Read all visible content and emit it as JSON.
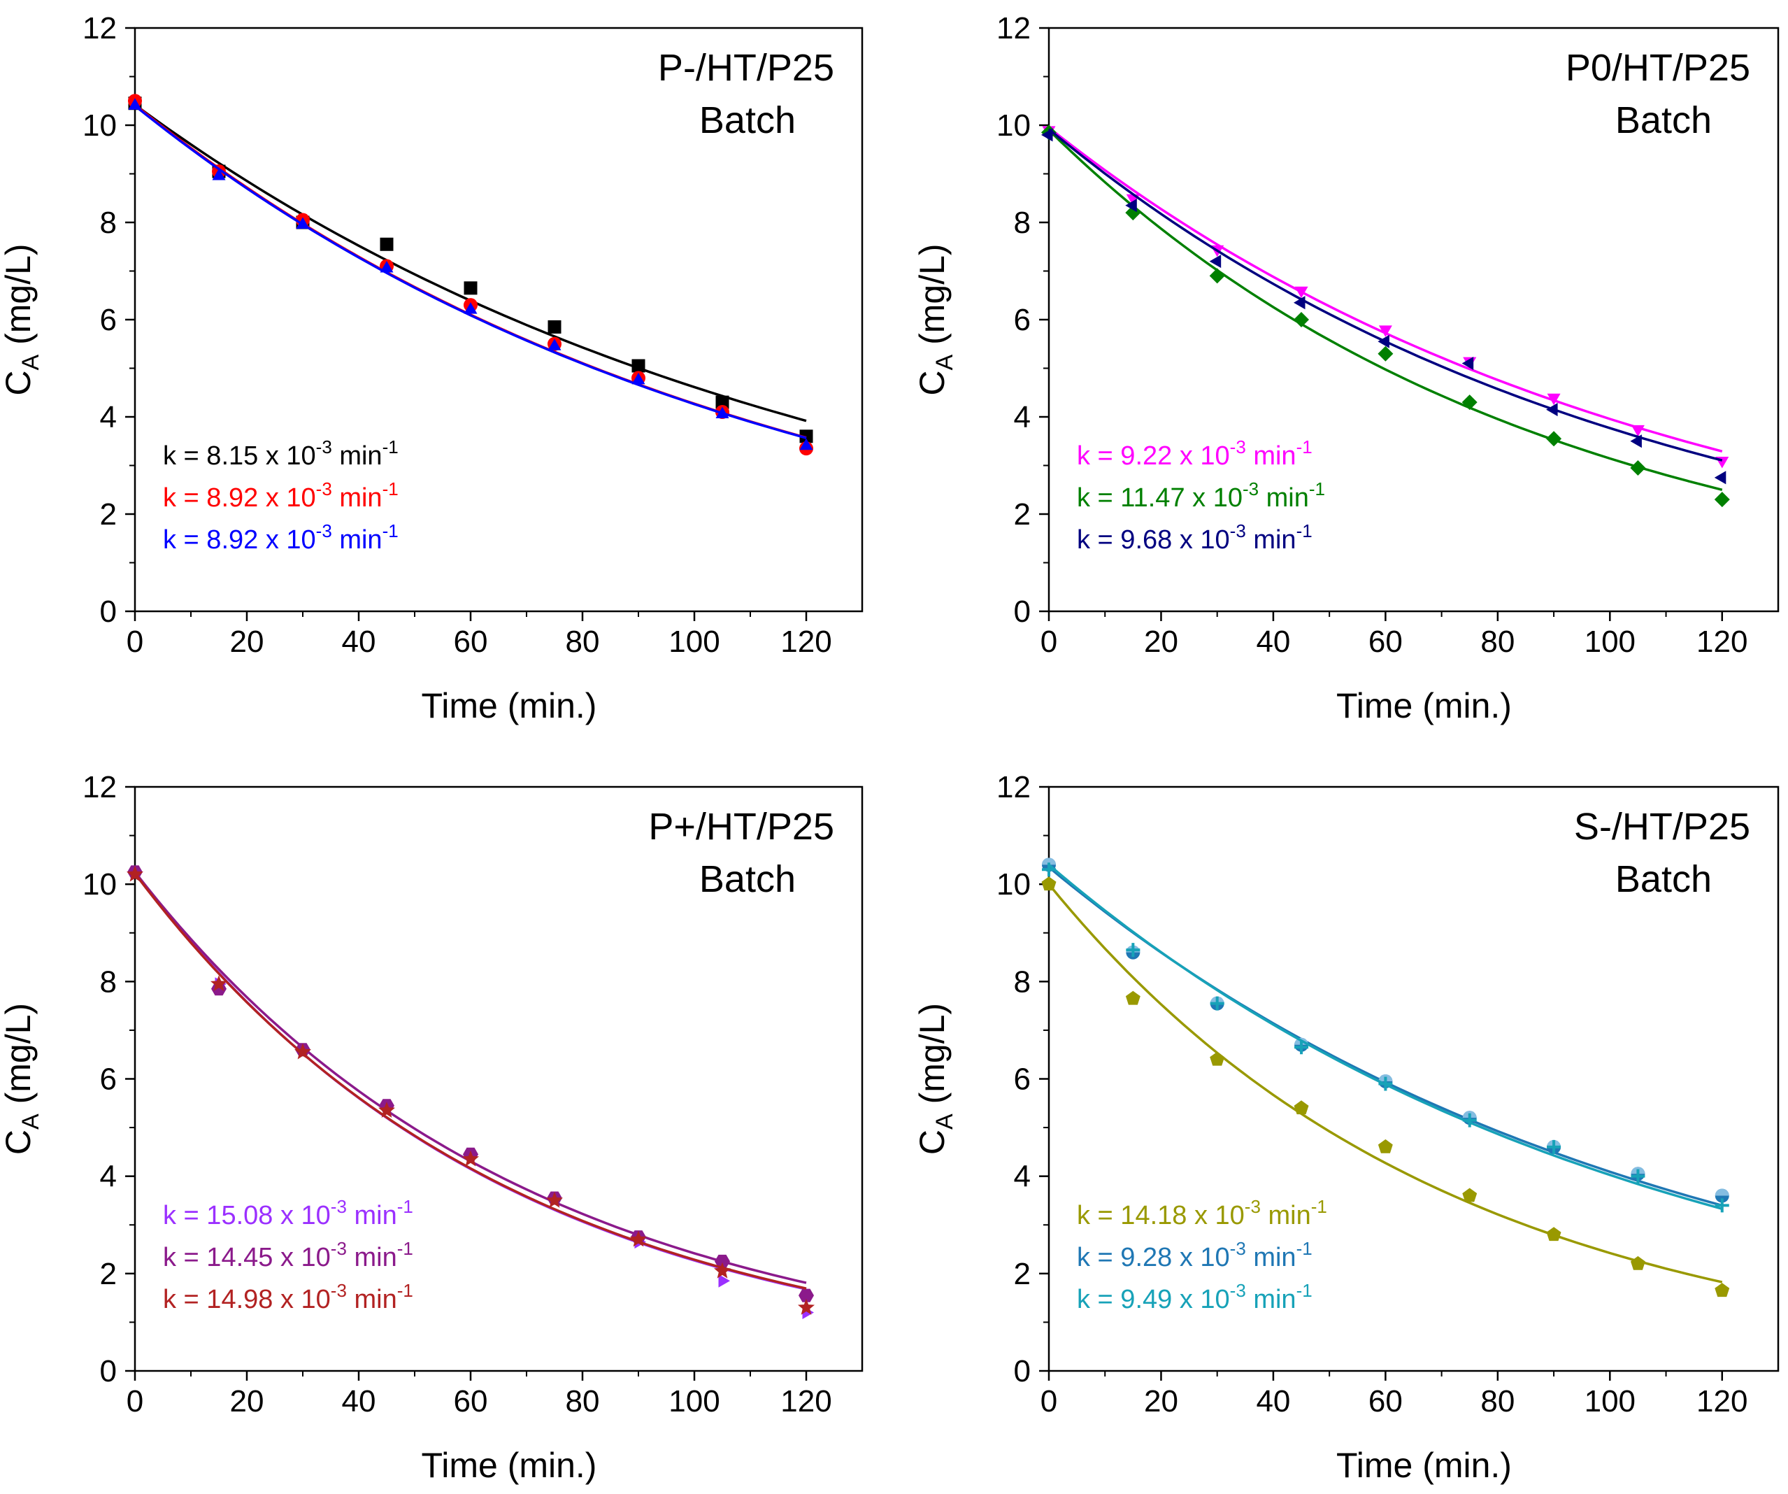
{
  "chart_data": [
    {
      "type": "scatter",
      "panel": "P-/HT/P25",
      "title_line1": "P-/HT/P25",
      "title_line2": "Batch",
      "xlabel": "Time (min.)",
      "ylabel_main": "C",
      "ylabel_sub": "A",
      "ylabel_rest": " (mg/L)",
      "xlim": [
        0,
        130
      ],
      "ylim": [
        0,
        12
      ],
      "xticks": [
        "0",
        "20",
        "40",
        "60",
        "80",
        "100",
        "120"
      ],
      "yticks": [
        "0",
        "2",
        "4",
        "6",
        "8",
        "10",
        "12"
      ],
      "legend_position": "bottom-left",
      "series": [
        {
          "color": "#000000",
          "marker": "square",
          "k_value": "8.15",
          "k_label": "k = 8.15 x 10",
          "k_exp": "-3",
          "k_unit": " min",
          "k_unit_exp": "-1",
          "fit": {
            "c0": 10.42,
            "k": 0.00815
          },
          "x": [
            0,
            15,
            30,
            45,
            60,
            75,
            90,
            105,
            120
          ],
          "y": [
            10.45,
            9.05,
            8.0,
            7.55,
            6.65,
            5.85,
            5.05,
            4.3,
            3.6
          ]
        },
        {
          "color": "#ff0000",
          "marker": "circle",
          "k_value": "8.92",
          "k_label": "k = 8.92 x 10",
          "k_exp": "-3",
          "k_unit": " min",
          "k_unit_exp": "-1",
          "fit": {
            "c0": 10.42,
            "k": 0.00892
          },
          "x": [
            0,
            15,
            30,
            45,
            60,
            75,
            90,
            105,
            120
          ],
          "y": [
            10.5,
            9.05,
            8.05,
            7.1,
            6.3,
            5.5,
            4.8,
            4.1,
            3.35
          ]
        },
        {
          "color": "#0000ff",
          "marker": "triangle-up",
          "k_value": "8.92",
          "k_label": "k = 8.92 x 10",
          "k_exp": "-3",
          "k_unit": " min",
          "k_unit_exp": "-1",
          "fit": {
            "c0": 10.4,
            "k": 0.00892
          },
          "x": [
            0,
            15,
            30,
            45,
            60,
            75,
            90,
            105,
            120
          ],
          "y": [
            10.4,
            8.95,
            7.95,
            7.05,
            6.2,
            5.45,
            4.75,
            4.05,
            3.4
          ]
        }
      ]
    },
    {
      "type": "scatter",
      "panel": "P0/HT/P25",
      "title_line1": "P0/HT/P25",
      "title_line2": "Batch",
      "xlabel": "Time (min.)",
      "ylabel_main": "C",
      "ylabel_sub": "A",
      "ylabel_rest": " (mg/L)",
      "xlim": [
        0,
        130
      ],
      "ylim": [
        0,
        12
      ],
      "xticks": [
        "0",
        "20",
        "40",
        "60",
        "80",
        "100",
        "120"
      ],
      "yticks": [
        "0",
        "2",
        "4",
        "6",
        "8",
        "10",
        "12"
      ],
      "legend_position": "bottom-left",
      "series": [
        {
          "color": "#ff00ff",
          "marker": "triangle-down",
          "k_value": "9.22",
          "k_label": "k = 9.22 x 10",
          "k_exp": "-3",
          "k_unit": " min",
          "k_unit_exp": "-1",
          "fit": {
            "c0": 9.95,
            "k": 0.00922
          },
          "x": [
            0,
            15,
            30,
            45,
            60,
            75,
            90,
            105,
            120
          ],
          "y": [
            9.9,
            8.5,
            7.45,
            6.6,
            5.8,
            5.15,
            4.4,
            3.75,
            3.1
          ]
        },
        {
          "color": "#008000",
          "marker": "diamond",
          "k_value": "11.47",
          "k_label": "k = 11.47 x 10",
          "k_exp": "-3",
          "k_unit": " min",
          "k_unit_exp": "-1",
          "fit": {
            "c0": 9.9,
            "k": 0.01147
          },
          "x": [
            0,
            15,
            30,
            45,
            60,
            75,
            90,
            105,
            120
          ],
          "y": [
            9.85,
            8.2,
            6.9,
            6.0,
            5.3,
            4.3,
            3.55,
            2.95,
            2.3
          ]
        },
        {
          "color": "#000080",
          "marker": "triangle-left",
          "k_value": "9.68",
          "k_label": "k = 9.68 x 10",
          "k_exp": "-3",
          "k_unit": " min",
          "k_unit_exp": "-1",
          "fit": {
            "c0": 9.92,
            "k": 0.00968
          },
          "x": [
            0,
            15,
            30,
            45,
            60,
            75,
            90,
            105,
            120
          ],
          "y": [
            9.8,
            8.35,
            7.2,
            6.35,
            5.55,
            5.1,
            4.15,
            3.5,
            2.75
          ]
        }
      ]
    },
    {
      "type": "scatter",
      "panel": "P+/HT/P25",
      "title_line1": "P+/HT/P25",
      "title_line2": "Batch",
      "xlabel": "Time (min.)",
      "ylabel_main": "C",
      "ylabel_sub": "A",
      "ylabel_rest": " (mg/L)",
      "xlim": [
        0,
        130
      ],
      "ylim": [
        0,
        12
      ],
      "xticks": [
        "0",
        "20",
        "40",
        "60",
        "80",
        "100",
        "120"
      ],
      "yticks": [
        "0",
        "2",
        "4",
        "6",
        "8",
        "10",
        "12"
      ],
      "legend_position": "bottom-left",
      "series": [
        {
          "color": "#9b30ff",
          "marker": "triangle-right",
          "k_value": "15.08",
          "k_label": "k = 15.08 x 10",
          "k_exp": "-3",
          "k_unit": " min",
          "k_unit_exp": "-1",
          "fit": {
            "c0": 10.25,
            "k": 0.01508
          },
          "x": [
            0,
            15,
            30,
            45,
            60,
            75,
            90,
            105,
            120
          ],
          "y": [
            10.25,
            7.95,
            6.6,
            5.4,
            4.45,
            3.55,
            2.65,
            1.85,
            1.2
          ]
        },
        {
          "color": "#8b1a8b",
          "marker": "hexagon",
          "k_value": "14.45",
          "k_label": "k = 14.45 x 10",
          "k_exp": "-3",
          "k_unit": " min",
          "k_unit_exp": "-1",
          "fit": {
            "c0": 10.25,
            "k": 0.01445
          },
          "x": [
            0,
            15,
            30,
            45,
            60,
            75,
            90,
            105,
            120
          ],
          "y": [
            10.25,
            7.85,
            6.6,
            5.45,
            4.45,
            3.55,
            2.75,
            2.25,
            1.55
          ]
        },
        {
          "color": "#b22222",
          "marker": "star",
          "k_value": "14.98",
          "k_label": "k = 14.98 x 10",
          "k_exp": "-3",
          "k_unit": " min",
          "k_unit_exp": "-1",
          "fit": {
            "c0": 10.22,
            "k": 0.01498
          },
          "x": [
            0,
            15,
            30,
            45,
            60,
            75,
            90,
            105,
            120
          ],
          "y": [
            10.2,
            7.95,
            6.55,
            5.35,
            4.35,
            3.5,
            2.7,
            2.05,
            1.3
          ]
        }
      ]
    },
    {
      "type": "scatter",
      "panel": "S-/HT/P25",
      "title_line1": "S-/HT/P25",
      "title_line2": "Batch",
      "xlabel": "Time (min.)",
      "ylabel_main": "C",
      "ylabel_sub": "A",
      "ylabel_rest": " (mg/L)",
      "xlim": [
        0,
        130
      ],
      "ylim": [
        0,
        12
      ],
      "xticks": [
        "0",
        "20",
        "40",
        "60",
        "80",
        "100",
        "120"
      ],
      "yticks": [
        "0",
        "2",
        "4",
        "6",
        "8",
        "10",
        "12"
      ],
      "legend_position": "bottom-left",
      "series": [
        {
          "color": "#999900",
          "marker": "pentagon",
          "k_value": "14.18",
          "k_label": "k = 14.18 x 10",
          "k_exp": "-3",
          "k_unit": " min",
          "k_unit_exp": "-1",
          "fit": {
            "c0": 10.0,
            "k": 0.01418
          },
          "x": [
            0,
            15,
            30,
            45,
            60,
            75,
            90,
            105,
            120
          ],
          "y": [
            10.0,
            7.65,
            6.4,
            5.4,
            4.6,
            3.6,
            2.8,
            2.2,
            1.65
          ]
        },
        {
          "color": "#1f77b4",
          "marker": "circle-half",
          "k_value": "9.28",
          "k_label": "k = 9.28 x 10",
          "k_exp": "-3",
          "k_unit": " min",
          "k_unit_exp": "-1",
          "fit": {
            "c0": 10.35,
            "k": 0.00928
          },
          "x": [
            0,
            15,
            30,
            45,
            60,
            75,
            90,
            105,
            120
          ],
          "y": [
            10.4,
            8.6,
            7.55,
            6.7,
            5.95,
            5.2,
            4.6,
            4.05,
            3.6
          ]
        },
        {
          "color": "#17a2b8",
          "marker": "plus",
          "k_value": "9.49",
          "k_label": "k = 9.49 x 10",
          "k_exp": "-3",
          "k_unit": " min",
          "k_unit_exp": "-1",
          "fit": {
            "c0": 10.4,
            "k": 0.00949
          },
          "x": [
            0,
            15,
            30,
            45,
            60,
            75,
            90,
            105,
            120
          ],
          "y": [
            10.3,
            8.65,
            7.55,
            6.65,
            5.9,
            5.15,
            4.6,
            4.0,
            3.4
          ]
        }
      ]
    }
  ]
}
